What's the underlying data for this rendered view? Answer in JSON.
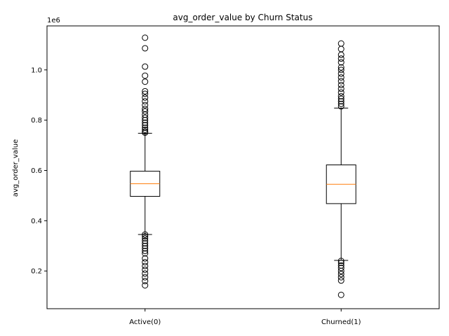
{
  "chart_data": {
    "type": "boxplot",
    "title": "avg_order_value by Churn Status",
    "xlabel": "",
    "ylabel": "avg_order_value",
    "y_multiplier_label": "1e6",
    "ylim": [
      0.05,
      1.175
    ],
    "yticks": [
      0.2,
      0.4,
      0.6,
      0.8,
      1.0
    ],
    "ytick_labels": [
      "0.2",
      "0.4",
      "0.6",
      "0.8",
      "1.0"
    ],
    "categories": [
      "Active(0)",
      "Churned(1)"
    ],
    "grid": false,
    "series": [
      {
        "category": "Active(0)",
        "whisker_low": 0.345,
        "q1": 0.497,
        "median": 0.547,
        "q3": 0.597,
        "whisker_high": 0.748,
        "outliers": [
          1.128,
          1.086,
          1.013,
          0.977,
          0.953,
          0.915,
          0.905,
          0.89,
          0.875,
          0.86,
          0.845,
          0.835,
          0.822,
          0.81,
          0.8,
          0.79,
          0.78,
          0.77,
          0.762,
          0.755,
          0.75,
          0.345,
          0.338,
          0.33,
          0.32,
          0.31,
          0.3,
          0.29,
          0.28,
          0.27,
          0.25,
          0.235,
          0.22,
          0.205,
          0.19,
          0.175,
          0.16,
          0.143
        ]
      },
      {
        "category": "Churned(1)",
        "whisker_low": 0.242,
        "q1": 0.468,
        "median": 0.545,
        "q3": 0.622,
        "whisker_high": 0.848,
        "outliers": [
          1.105,
          1.083,
          1.06,
          1.045,
          1.03,
          1.01,
          1.0,
          0.985,
          0.97,
          0.955,
          0.94,
          0.925,
          0.91,
          0.895,
          0.885,
          0.875,
          0.865,
          0.855,
          0.24,
          0.232,
          0.222,
          0.212,
          0.2,
          0.188,
          0.175,
          0.162,
          0.105
        ]
      }
    ],
    "colors": {
      "box": "#000000",
      "median": "#ff7f0e",
      "axes": "#000000",
      "background": "#ffffff"
    }
  }
}
